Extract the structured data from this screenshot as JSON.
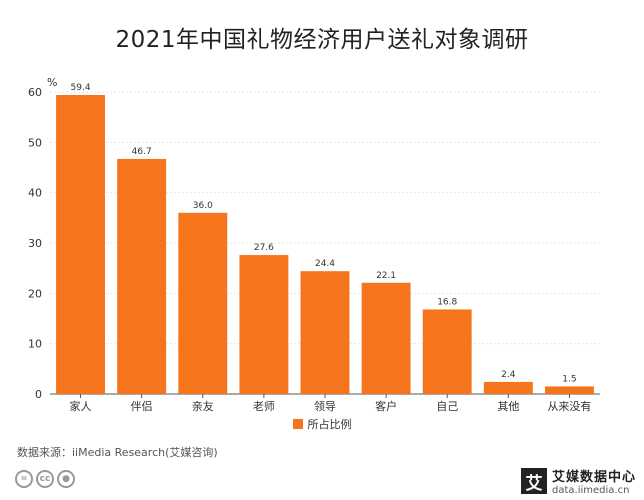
{
  "chart_data": {
    "type": "bar",
    "title": "2021年中国礼物经济用户送礼对象调研",
    "unit": "%",
    "categories": [
      "家人",
      "伴侣",
      "亲友",
      "老师",
      "领导",
      "客户",
      "自己",
      "其他",
      "从来没有"
    ],
    "series": [
      {
        "name": "所占比例",
        "values": [
          59.4,
          46.7,
          36.0,
          27.6,
          24.4,
          22.1,
          16.8,
          2.4,
          1.5
        ]
      }
    ],
    "ylim": [
      0,
      60
    ],
    "yticks": [
      0,
      10,
      20,
      30,
      40,
      50,
      60
    ],
    "grid": true,
    "legend_position": "bottom",
    "bar_color": "#f5741c"
  },
  "source": "数据来源：iiMedia Research(艾媒咨询)",
  "footer": {
    "cc_icons": [
      "=",
      "cc",
      "person"
    ],
    "brand_logo_char": "艾",
    "brand_name": "艾媒数据中心",
    "brand_url": "data.iimedia.cn"
  }
}
